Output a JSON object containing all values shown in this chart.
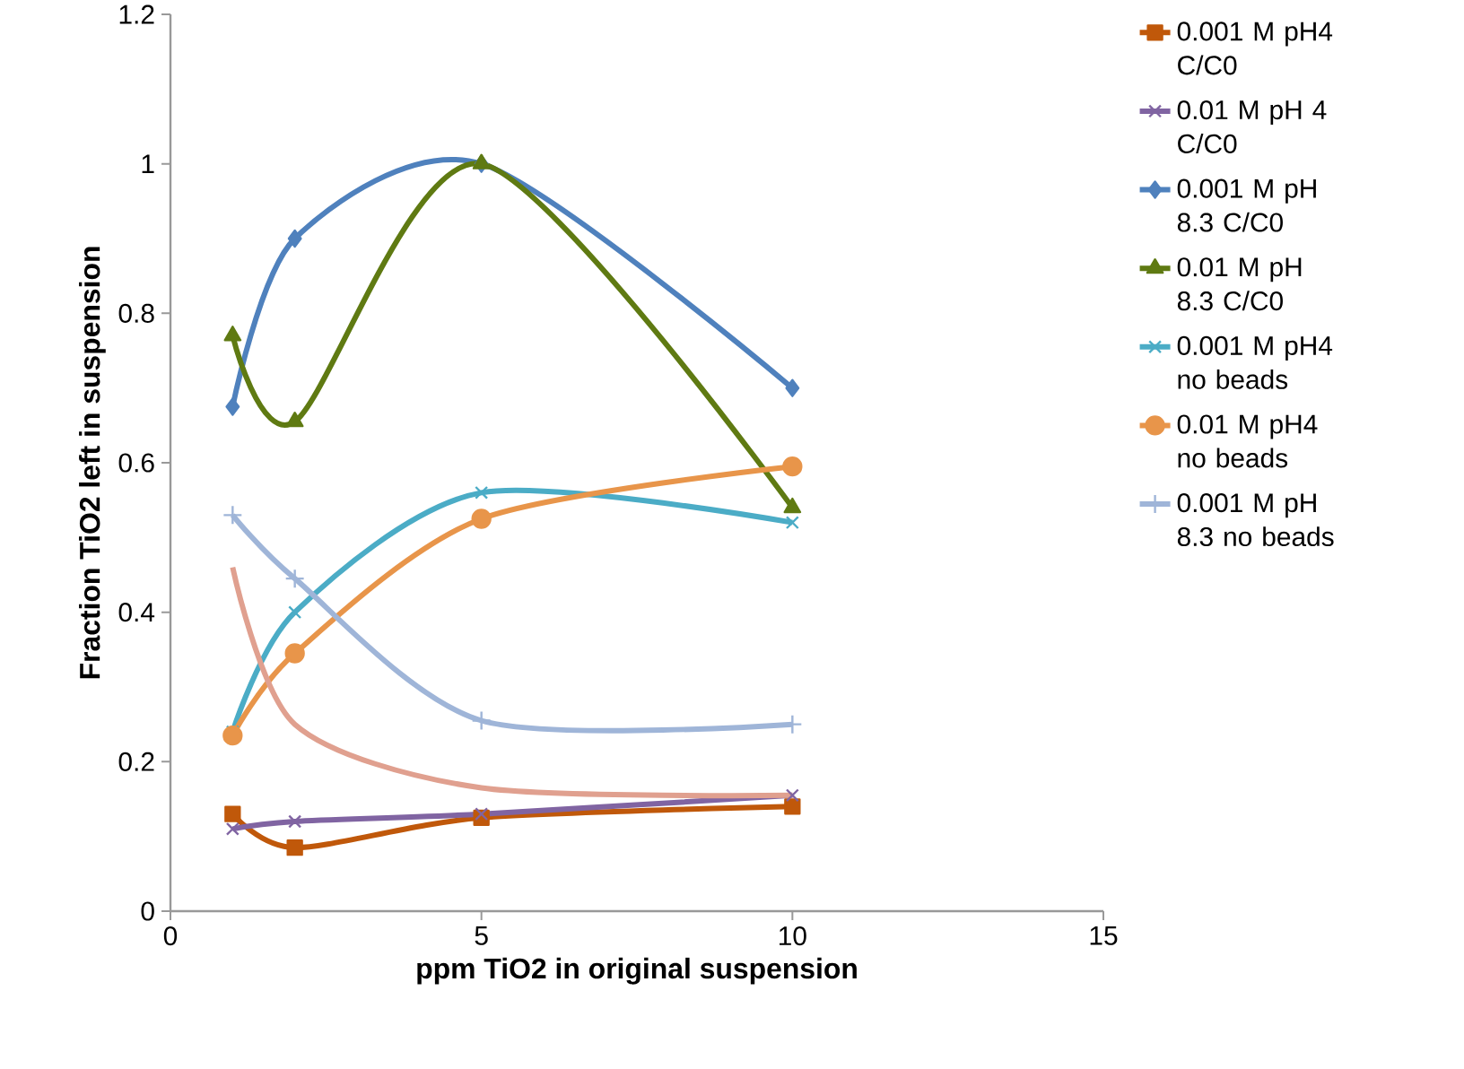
{
  "chart_data": {
    "type": "line",
    "xlabel": "ppm TiO2 in original suspension",
    "ylabel": "Fraction TiO2 left in suspension",
    "x": [
      1,
      2,
      5,
      10
    ],
    "xlim": [
      0,
      15
    ],
    "xticks": [
      0,
      5,
      10,
      15
    ],
    "ylim": [
      0,
      1.2
    ],
    "yticks": [
      0,
      0.2,
      0.4,
      0.6,
      0.8,
      1,
      1.2
    ],
    "legend": "right",
    "line_style": "solid",
    "series": [
      {
        "name": "0.001 M pH4 C/C0",
        "color": "#c0580a",
        "marker": "square",
        "values": [
          0.13,
          0.085,
          0.125,
          0.14
        ]
      },
      {
        "name": "0.01 M pH 4 C/C0",
        "color": "#8064a2",
        "marker": "cross",
        "values": [
          0.11,
          0.12,
          0.13,
          0.155
        ]
      },
      {
        "name": "0.001 M pH 8.3 C/C0",
        "color": "#4f81bd",
        "marker": "diamond",
        "values": [
          0.675,
          0.9,
          1.0,
          0.7
        ]
      },
      {
        "name": "0.01 M pH 8.3 C/C0",
        "color": "#5f7a12",
        "marker": "triangle",
        "values": [
          0.77,
          0.655,
          1.0,
          0.54
        ]
      },
      {
        "name": "0.001 M pH4 no beads",
        "color": "#4bacc6",
        "marker": "cross",
        "values": [
          0.24,
          0.4,
          0.56,
          0.52
        ]
      },
      {
        "name": "0.01 M pH4 no beads",
        "color": "#e8954a",
        "marker": "circle",
        "values": [
          0.235,
          0.345,
          0.525,
          0.595
        ]
      },
      {
        "name": "0.001 M pH 8.3 no beads",
        "color": "#9fb5d8",
        "marker": "plus",
        "values": [
          0.53,
          0.445,
          0.255,
          0.25
        ]
      },
      {
        "color": "#e0a08f",
        "marker": "none",
        "values": [
          0.46,
          0.25,
          0.165,
          0.155
        ]
      }
    ]
  }
}
